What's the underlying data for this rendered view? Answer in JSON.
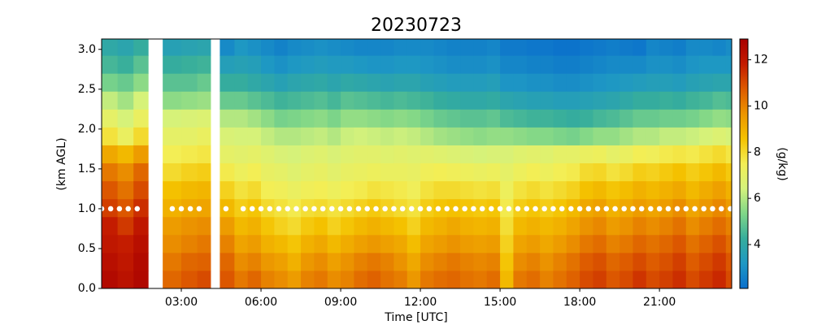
{
  "chart_data": {
    "type": "heatmap",
    "title": "20230723",
    "x_label": "Time [UTC]",
    "y_label": "(km AGL)",
    "colorbar_label": "(g/kg)",
    "xlim": [
      0,
      23.72
    ],
    "ylim": [
      0,
      3.13
    ],
    "clim": [
      2.1,
      12.9
    ],
    "xticks": [
      {
        "value": 3,
        "label": "03:00"
      },
      {
        "value": 6,
        "label": "06:00"
      },
      {
        "value": 9,
        "label": "09:00"
      },
      {
        "value": 12,
        "label": "12:00"
      },
      {
        "value": 15,
        "label": "15:00"
      },
      {
        "value": 18,
        "label": "18:00"
      },
      {
        "value": 21,
        "label": "21:00"
      }
    ],
    "yticks": [
      {
        "value": 0,
        "label": "0.0"
      },
      {
        "value": 0.5,
        "label": "0.5"
      },
      {
        "value": 1,
        "label": "1.0"
      },
      {
        "value": 1.5,
        "label": "1.5"
      },
      {
        "value": 2,
        "label": "2.0"
      },
      {
        "value": 2.5,
        "label": "2.5"
      },
      {
        "value": 3,
        "label": "3.0"
      }
    ],
    "cticks": [
      4,
      6,
      8,
      10,
      12
    ],
    "colormap": [
      "#0a6fcc",
      "#1e98c4",
      "#36ad9c",
      "#7fd688",
      "#d4f27c",
      "#f3ee55",
      "#f4c200",
      "#ec9500",
      "#dd5a00",
      "#c41b00",
      "#a80000"
    ],
    "x_edges": [
      0,
      0.6,
      1.2,
      1.75,
      2.3,
      3.0,
      3.6,
      4.1,
      4.45,
      5.0,
      5.5,
      6,
      6.5,
      7,
      7.5,
      8,
      8.5,
      9,
      9.5,
      10,
      10.5,
      11,
      11.5,
      12,
      12.5,
      13,
      13.5,
      14,
      14.5,
      15,
      15.5,
      16,
      16.5,
      17,
      17.5,
      18,
      18.5,
      19,
      19.5,
      20,
      20.5,
      21,
      21.5,
      22,
      22.5,
      23,
      23.5,
      23.72
    ],
    "y_edges": [
      0,
      0.225,
      0.45,
      0.675,
      0.9,
      1.125,
      1.35,
      1.575,
      1.8,
      2.025,
      2.25,
      2.475,
      2.7,
      2.925,
      3.15
    ],
    "values": [
      [
        12.5,
        12.3,
        12,
        11.8,
        11.2,
        10.8,
        10.2,
        9.2,
        7.8,
        7,
        6.2,
        5.2,
        4.5,
        4.0
      ],
      [
        12.2,
        12,
        11.8,
        11.3,
        10.8,
        10.3,
        9.8,
        8.8,
        7.2,
        6.5,
        5.8,
        5,
        4.3,
        3.8
      ],
      [
        12.6,
        12.5,
        12.3,
        12,
        11.5,
        11,
        10.5,
        9.5,
        8,
        7.2,
        6.5,
        5.5,
        4.8,
        4.2
      ],
      [
        null,
        null,
        null,
        null,
        null,
        null,
        null,
        null,
        null,
        null,
        null,
        null,
        null,
        null
      ],
      [
        10.5,
        10.2,
        9.8,
        9.5,
        9,
        8.6,
        8,
        7.5,
        7,
        6.5,
        5.5,
        4.8,
        4.2,
        3.6
      ],
      [
        10.8,
        10.5,
        10,
        9.7,
        9.2,
        8.8,
        8.2,
        7.6,
        7,
        6.6,
        5.6,
        4.8,
        4.3,
        3.7
      ],
      [
        11,
        10.6,
        10.2,
        9.8,
        9.3,
        8.9,
        8.3,
        7.7,
        7.2,
        6.7,
        5.7,
        5,
        4.4,
        3.8
      ],
      [
        null,
        null,
        null,
        null,
        null,
        null,
        null,
        null,
        null,
        null,
        null,
        null,
        null,
        null
      ],
      [
        10.8,
        10.5,
        10,
        9.5,
        8.8,
        8.2,
        7.6,
        7,
        6.6,
        6,
        5,
        4.2,
        3.5,
        2.8
      ],
      [
        10.2,
        9.8,
        9.3,
        8.8,
        8.3,
        7.8,
        7.3,
        6.9,
        6.5,
        6,
        5,
        4.2,
        3.6,
        3.2
      ],
      [
        10.5,
        10,
        9.5,
        9,
        8.5,
        8,
        7.5,
        7,
        6.5,
        5.8,
        4.8,
        4,
        3.5,
        3
      ],
      [
        10,
        9.6,
        9,
        8.5,
        8,
        7.5,
        7.1,
        6.8,
        6.2,
        5.5,
        4.6,
        3.8,
        3.2,
        2.8
      ],
      [
        9.8,
        9.4,
        8.8,
        8.2,
        7.8,
        7.4,
        7,
        6.6,
        6,
        5.2,
        4.4,
        3.6,
        3,
        2.6
      ],
      [
        9.5,
        9,
        8.5,
        8,
        7.6,
        7.2,
        6.8,
        6.5,
        6,
        5.3,
        4.5,
        3.8,
        3.2,
        2.8
      ],
      [
        10,
        9.6,
        9,
        8.4,
        7.9,
        7.4,
        7,
        6.7,
        6.1,
        5.4,
        4.6,
        3.9,
        3.3,
        2.9
      ],
      [
        10.2,
        9.8,
        9.2,
        8.6,
        8,
        7.5,
        7.1,
        6.8,
        6.2,
        5.5,
        4.7,
        4,
        3.4,
        3
      ],
      [
        9.8,
        9.4,
        8.8,
        8.2,
        7.8,
        7.3,
        6.9,
        6.6,
        6,
        5.3,
        4.5,
        3.8,
        3.3,
        2.9
      ],
      [
        10,
        9.7,
        9.1,
        8.5,
        8,
        7.5,
        7.1,
        6.8,
        6.3,
        5.6,
        4.8,
        4,
        3.3,
        2.8
      ],
      [
        10.4,
        10,
        9.4,
        8.8,
        8.2,
        7.6,
        7.2,
        6.9,
        6.4,
        5.6,
        4.7,
        3.9,
        3.2,
        2.7
      ],
      [
        10.6,
        10.2,
        9.6,
        9,
        8.4,
        7.8,
        7.3,
        6.9,
        6.3,
        5.5,
        4.6,
        3.8,
        3.1,
        2.7
      ],
      [
        10.3,
        10,
        9.4,
        8.8,
        8.2,
        7.7,
        7.2,
        6.8,
        6.2,
        5.4,
        4.5,
        3.7,
        3.1,
        2.7
      ],
      [
        10.1,
        9.7,
        9.2,
        8.6,
        8,
        7.6,
        7.2,
        6.9,
        6.3,
        5.5,
        4.6,
        3.8,
        3.2,
        2.8
      ],
      [
        9.6,
        9.2,
        8.7,
        8.2,
        7.8,
        7.4,
        7.1,
        6.8,
        6.2,
        5.4,
        4.5,
        3.8,
        3.2,
        2.8
      ],
      [
        10.2,
        9.8,
        9.3,
        8.8,
        8.3,
        7.8,
        7.4,
        6.9,
        6,
        5.2,
        4.4,
        3.6,
        3.1,
        2.8
      ],
      [
        10.4,
        10,
        9.5,
        9,
        8.5,
        8,
        7.5,
        6.8,
        5.8,
        5,
        4.2,
        3.5,
        3,
        2.7
      ],
      [
        10.5,
        10.2,
        9.7,
        9.2,
        8.6,
        8,
        7.4,
        6.7,
        5.7,
        4.9,
        4.1,
        3.4,
        2.9,
        2.6
      ],
      [
        10.3,
        10,
        9.5,
        9,
        8.5,
        7.9,
        7.3,
        6.6,
        5.6,
        4.8,
        4,
        3.4,
        2.9,
        2.6
      ],
      [
        10.2,
        9.9,
        9.4,
        8.9,
        8.4,
        7.8,
        7.2,
        6.5,
        5.5,
        4.8,
        4,
        3.4,
        2.9,
        2.6
      ],
      [
        10.4,
        10,
        9.5,
        9,
        8.5,
        7.9,
        7.3,
        6.6,
        5.6,
        4.9,
        4.1,
        3.5,
        3,
        2.7
      ],
      [
        8.8,
        8.5,
        8.2,
        7.9,
        7.6,
        7.3,
        7,
        6.6,
        5.6,
        4.6,
        3.8,
        3.1,
        2.7,
        2.4
      ],
      [
        10.2,
        9.8,
        9.3,
        8.8,
        8.3,
        7.8,
        7.3,
        6.8,
        5.5,
        4.5,
        3.7,
        3.1,
        2.7,
        2.4
      ],
      [
        10.4,
        10,
        9.5,
        9,
        8.5,
        8,
        7.5,
        6.9,
        5.4,
        4.4,
        3.6,
        3,
        2.6,
        2.3
      ],
      [
        10,
        9.7,
        9.2,
        8.8,
        8.3,
        7.8,
        7.3,
        6.8,
        5.4,
        4.4,
        3.6,
        3,
        2.6,
        2.3
      ],
      [
        10.3,
        10,
        9.5,
        9,
        8.5,
        8,
        7.5,
        7,
        5.3,
        4.3,
        3.5,
        2.9,
        2.5,
        2.2
      ],
      [
        10.6,
        10.3,
        9.8,
        9.3,
        8.8,
        8.2,
        7.6,
        7,
        5.2,
        4.2,
        3.5,
        2.9,
        2.5,
        2.2
      ],
      [
        11,
        10.7,
        10.2,
        9.7,
        9.2,
        8.6,
        8,
        7.2,
        5.4,
        4.3,
        3.6,
        3,
        2.6,
        2.3
      ],
      [
        11.2,
        10.9,
        10.4,
        9.9,
        9.4,
        8.8,
        8.1,
        7.3,
        5.6,
        4.5,
        3.7,
        3.1,
        2.7,
        2.4
      ],
      [
        10.8,
        10.5,
        10,
        9.5,
        9,
        8.5,
        7.8,
        7,
        5.6,
        4.6,
        3.8,
        3.2,
        2.8,
        2.5
      ],
      [
        11,
        10.7,
        10.2,
        9.7,
        9.2,
        8.7,
        8,
        7.2,
        5.8,
        4.8,
        4,
        3.3,
        2.8,
        2.4
      ],
      [
        11.4,
        11,
        10.5,
        10,
        9.5,
        9,
        8.3,
        7.5,
        6,
        5,
        4.2,
        3.4,
        2.8,
        2.3
      ],
      [
        11,
        10.7,
        10.3,
        9.8,
        9.3,
        8.8,
        8.2,
        7.4,
        6,
        5,
        4.2,
        3.5,
        3,
        2.7
      ],
      [
        11.2,
        10.9,
        10.5,
        10,
        9.5,
        9,
        8.4,
        7.6,
        6.2,
        5.1,
        4.3,
        3.5,
        3,
        2.6
      ],
      [
        11.5,
        11.2,
        10.8,
        10.3,
        9.8,
        9.2,
        8.6,
        7.7,
        6.2,
        5.1,
        4.2,
        3.4,
        2.9,
        2.5
      ],
      [
        11,
        10.7,
        10.3,
        9.8,
        9.3,
        8.8,
        8.3,
        7.6,
        6.3,
        5.2,
        4.4,
        3.6,
        3.1,
        2.8
      ],
      [
        11.3,
        11,
        10.6,
        10.1,
        9.6,
        9.1,
        8.5,
        7.8,
        6.5,
        5.4,
        4.5,
        3.7,
        3.2,
        2.8
      ],
      [
        11.6,
        11.3,
        10.9,
        10.4,
        9.9,
        9.4,
        8.8,
        8,
        6.7,
        5.6,
        4.7,
        3.8,
        3.2,
        2.7
      ],
      [
        11,
        10.8,
        10.4,
        10,
        9.5,
        9,
        8.4,
        7.7,
        6.5,
        5.5,
        4.6,
        3.8,
        3.2,
        2.9
      ]
    ],
    "markers": {
      "color": "#ffffff",
      "x": [
        0,
        0.34,
        0.67,
        1,
        1.34,
        2.66,
        3,
        3.34,
        3.67,
        4.68,
        5.33,
        5.67,
        6,
        6.33,
        6.67,
        7,
        7.33,
        7.67,
        8,
        8.33,
        8.67,
        9,
        9.33,
        9.67,
        10,
        10.33,
        10.67,
        11,
        11.33,
        11.67,
        12,
        12.33,
        12.67,
        13,
        13.33,
        13.67,
        14,
        14.33,
        14.67,
        15,
        15.33,
        15.67,
        16,
        16.33,
        16.67,
        17,
        17.33,
        17.67,
        18,
        18.33,
        18.67,
        19,
        19.33,
        19.67,
        20,
        20.33,
        20.67,
        21,
        21.33,
        21.67,
        22,
        22.33,
        22.67,
        23,
        23.33,
        23.67
      ],
      "y": [
        1,
        1,
        1,
        1,
        1,
        1,
        1,
        1,
        1,
        1,
        1,
        1,
        1,
        1,
        1,
        1,
        1,
        1,
        1,
        1,
        1,
        1,
        1,
        1,
        1,
        1,
        1,
        1,
        1,
        1,
        1,
        1,
        1,
        1,
        1,
        1,
        1,
        1,
        1,
        1,
        1,
        1,
        1,
        1,
        1,
        1,
        1,
        1,
        1,
        1,
        1,
        1,
        1,
        1,
        1,
        1,
        1,
        1,
        1,
        1,
        1,
        1,
        1,
        1,
        1,
        1
      ]
    }
  }
}
